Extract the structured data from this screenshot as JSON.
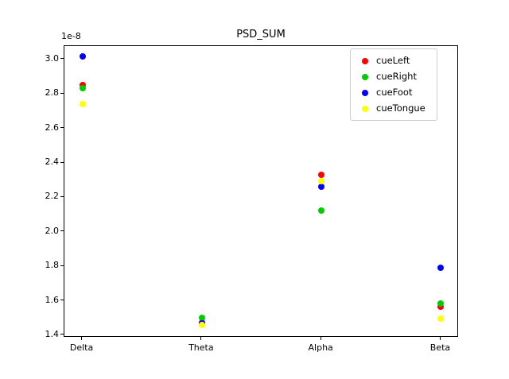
{
  "figure": {
    "title": "PSD_SUM",
    "background": "#ffffff"
  },
  "chart_data": {
    "type": "scatter",
    "title": "PSD_SUM",
    "xlabel": "",
    "ylabel": "",
    "y_offset": "1e-8",
    "categories": [
      "Delta",
      "Theta",
      "Alpha",
      "Beta"
    ],
    "series": [
      {
        "name": "cueLeft",
        "color": "#ff0000",
        "values": [
          2.85,
          1.475,
          2.33,
          1.565
        ]
      },
      {
        "name": "cueRight",
        "color": "#00cc00",
        "values": [
          2.835,
          1.5,
          2.125,
          1.585
        ]
      },
      {
        "name": "cueFoot",
        "color": "#0000ff",
        "values": [
          3.02,
          1.47,
          2.26,
          1.79
        ]
      },
      {
        "name": "cueTongue",
        "color": "#ffff00",
        "values": [
          2.74,
          1.46,
          2.295,
          1.495
        ]
      }
    ],
    "y_ticks": [
      1.4,
      1.6,
      1.8,
      2.0,
      2.2,
      2.4,
      2.6,
      2.8,
      3.0
    ],
    "y_tick_labels": [
      "1.4",
      "1.6",
      "1.8",
      "2.0",
      "2.2",
      "2.4",
      "2.6",
      "2.8",
      "3.0"
    ],
    "ylim": [
      1.386,
      3.078
    ],
    "x_margin": 0.15,
    "grid": false,
    "legend": {
      "location": "upper right",
      "entries": [
        "cueLeft",
        "cueRight",
        "cueFoot",
        "cueTongue"
      ]
    }
  }
}
